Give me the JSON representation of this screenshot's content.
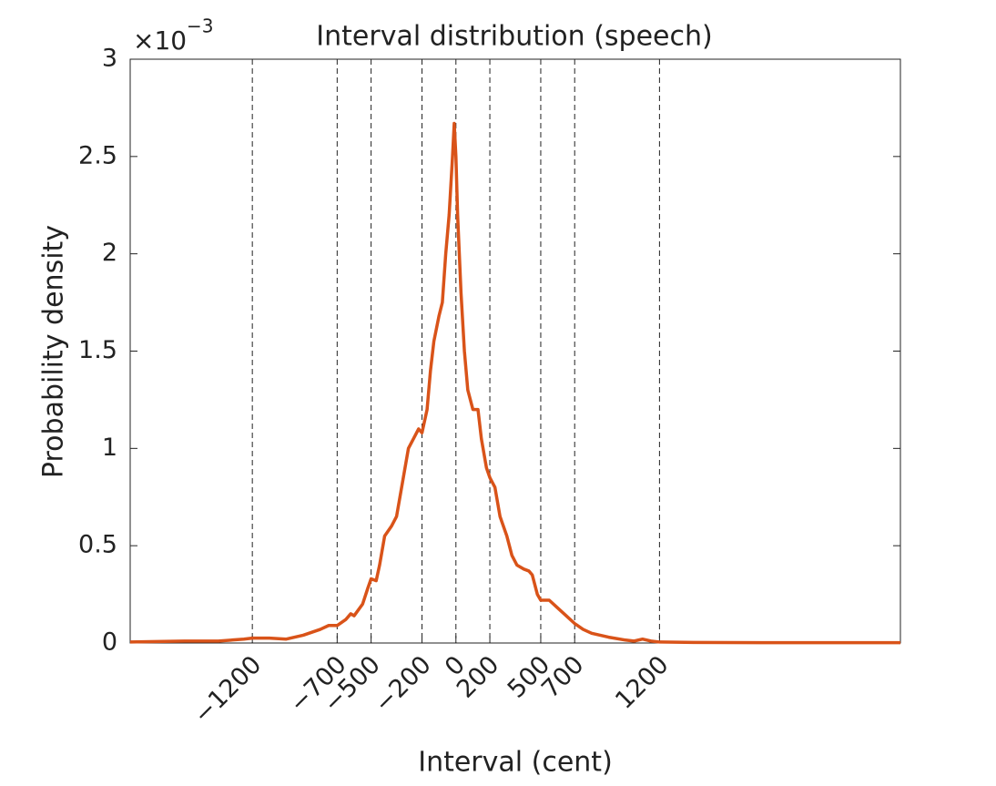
{
  "chart_data": {
    "type": "line",
    "title": "Interval distribution (speech)",
    "x_label": "Interval (cent)",
    "y_label": "Probability density",
    "y_multiplier": {
      "base": "×10",
      "exponent": "−3"
    },
    "xlim": [
      -1920,
      2620
    ],
    "ylim": [
      0,
      3
    ],
    "xticks": [
      {
        "value": -1200,
        "label": "−1200"
      },
      {
        "value": -700,
        "label": "−700"
      },
      {
        "value": -500,
        "label": "−500"
      },
      {
        "value": -200,
        "label": "−200"
      },
      0,
      200,
      500,
      700,
      1200
    ],
    "yticks": [
      0,
      0.5,
      1,
      1.5,
      2,
      2.5,
      3
    ],
    "x_grid": "dashed",
    "series": [
      {
        "name": "speech",
        "color": "#d95319",
        "x": [
          -1920,
          -1600,
          -1400,
          -1250,
          -1200,
          -1100,
          -1000,
          -900,
          -800,
          -750,
          -700,
          -650,
          -620,
          -600,
          -550,
          -520,
          -500,
          -470,
          -450,
          -420,
          -380,
          -350,
          -320,
          -300,
          -280,
          -250,
          -220,
          -200,
          -170,
          -150,
          -130,
          -100,
          -80,
          -60,
          -40,
          -20,
          -10,
          0,
          10,
          30,
          50,
          70,
          100,
          130,
          150,
          180,
          200,
          230,
          260,
          300,
          330,
          360,
          400,
          430,
          450,
          480,
          500,
          550,
          600,
          650,
          700,
          750,
          800,
          900,
          1000,
          1050,
          1100,
          1150,
          1200,
          1400,
          1800,
          2200,
          2620
        ],
        "values": [
          0.005,
          0.01,
          0.01,
          0.02,
          0.025,
          0.025,
          0.02,
          0.04,
          0.07,
          0.09,
          0.09,
          0.12,
          0.15,
          0.14,
          0.2,
          0.28,
          0.33,
          0.32,
          0.4,
          0.55,
          0.6,
          0.65,
          0.8,
          0.9,
          1.0,
          1.05,
          1.1,
          1.08,
          1.2,
          1.4,
          1.55,
          1.68,
          1.75,
          2.0,
          2.2,
          2.5,
          2.67,
          2.5,
          2.2,
          1.8,
          1.5,
          1.3,
          1.2,
          1.2,
          1.05,
          0.9,
          0.85,
          0.8,
          0.65,
          0.55,
          0.45,
          0.4,
          0.38,
          0.37,
          0.35,
          0.25,
          0.22,
          0.22,
          0.18,
          0.14,
          0.1,
          0.07,
          0.05,
          0.03,
          0.015,
          0.01,
          0.02,
          0.01,
          0.005,
          0.003,
          0.002,
          0.002,
          0.002
        ]
      }
    ]
  }
}
